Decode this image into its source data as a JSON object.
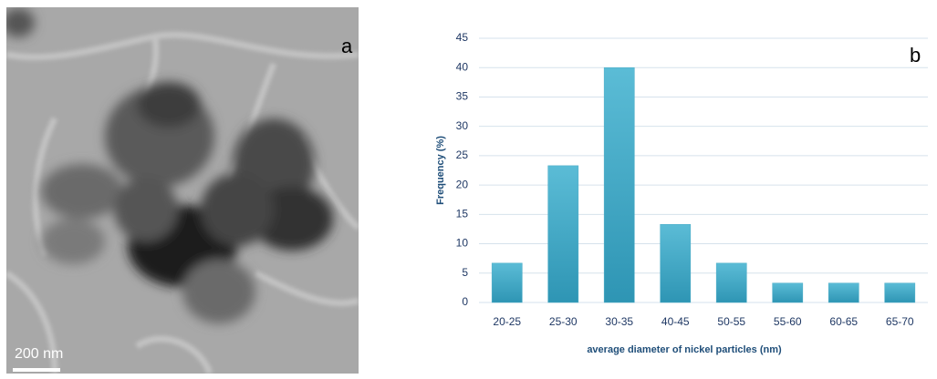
{
  "image": {
    "panel_label": "a",
    "scale_bar": "200 nm"
  },
  "chart_data": {
    "type": "bar",
    "panel_label": "b",
    "x_label": "average diameter of nickel particles (nm)",
    "y_label": "Frequency (%)",
    "categories": [
      "20-25",
      "25-30",
      "30-35",
      "40-45",
      "50-55",
      "55-60",
      "60-65",
      "65-70"
    ],
    "values": [
      6.7,
      23.3,
      40,
      13.3,
      6.7,
      3.3,
      3.3,
      3.3
    ],
    "color": "#4bacc6",
    "ylim": [
      0,
      45
    ],
    "yticks": [
      0,
      5,
      10,
      15,
      20,
      25,
      30,
      35,
      40,
      45
    ],
    "grid": true
  }
}
